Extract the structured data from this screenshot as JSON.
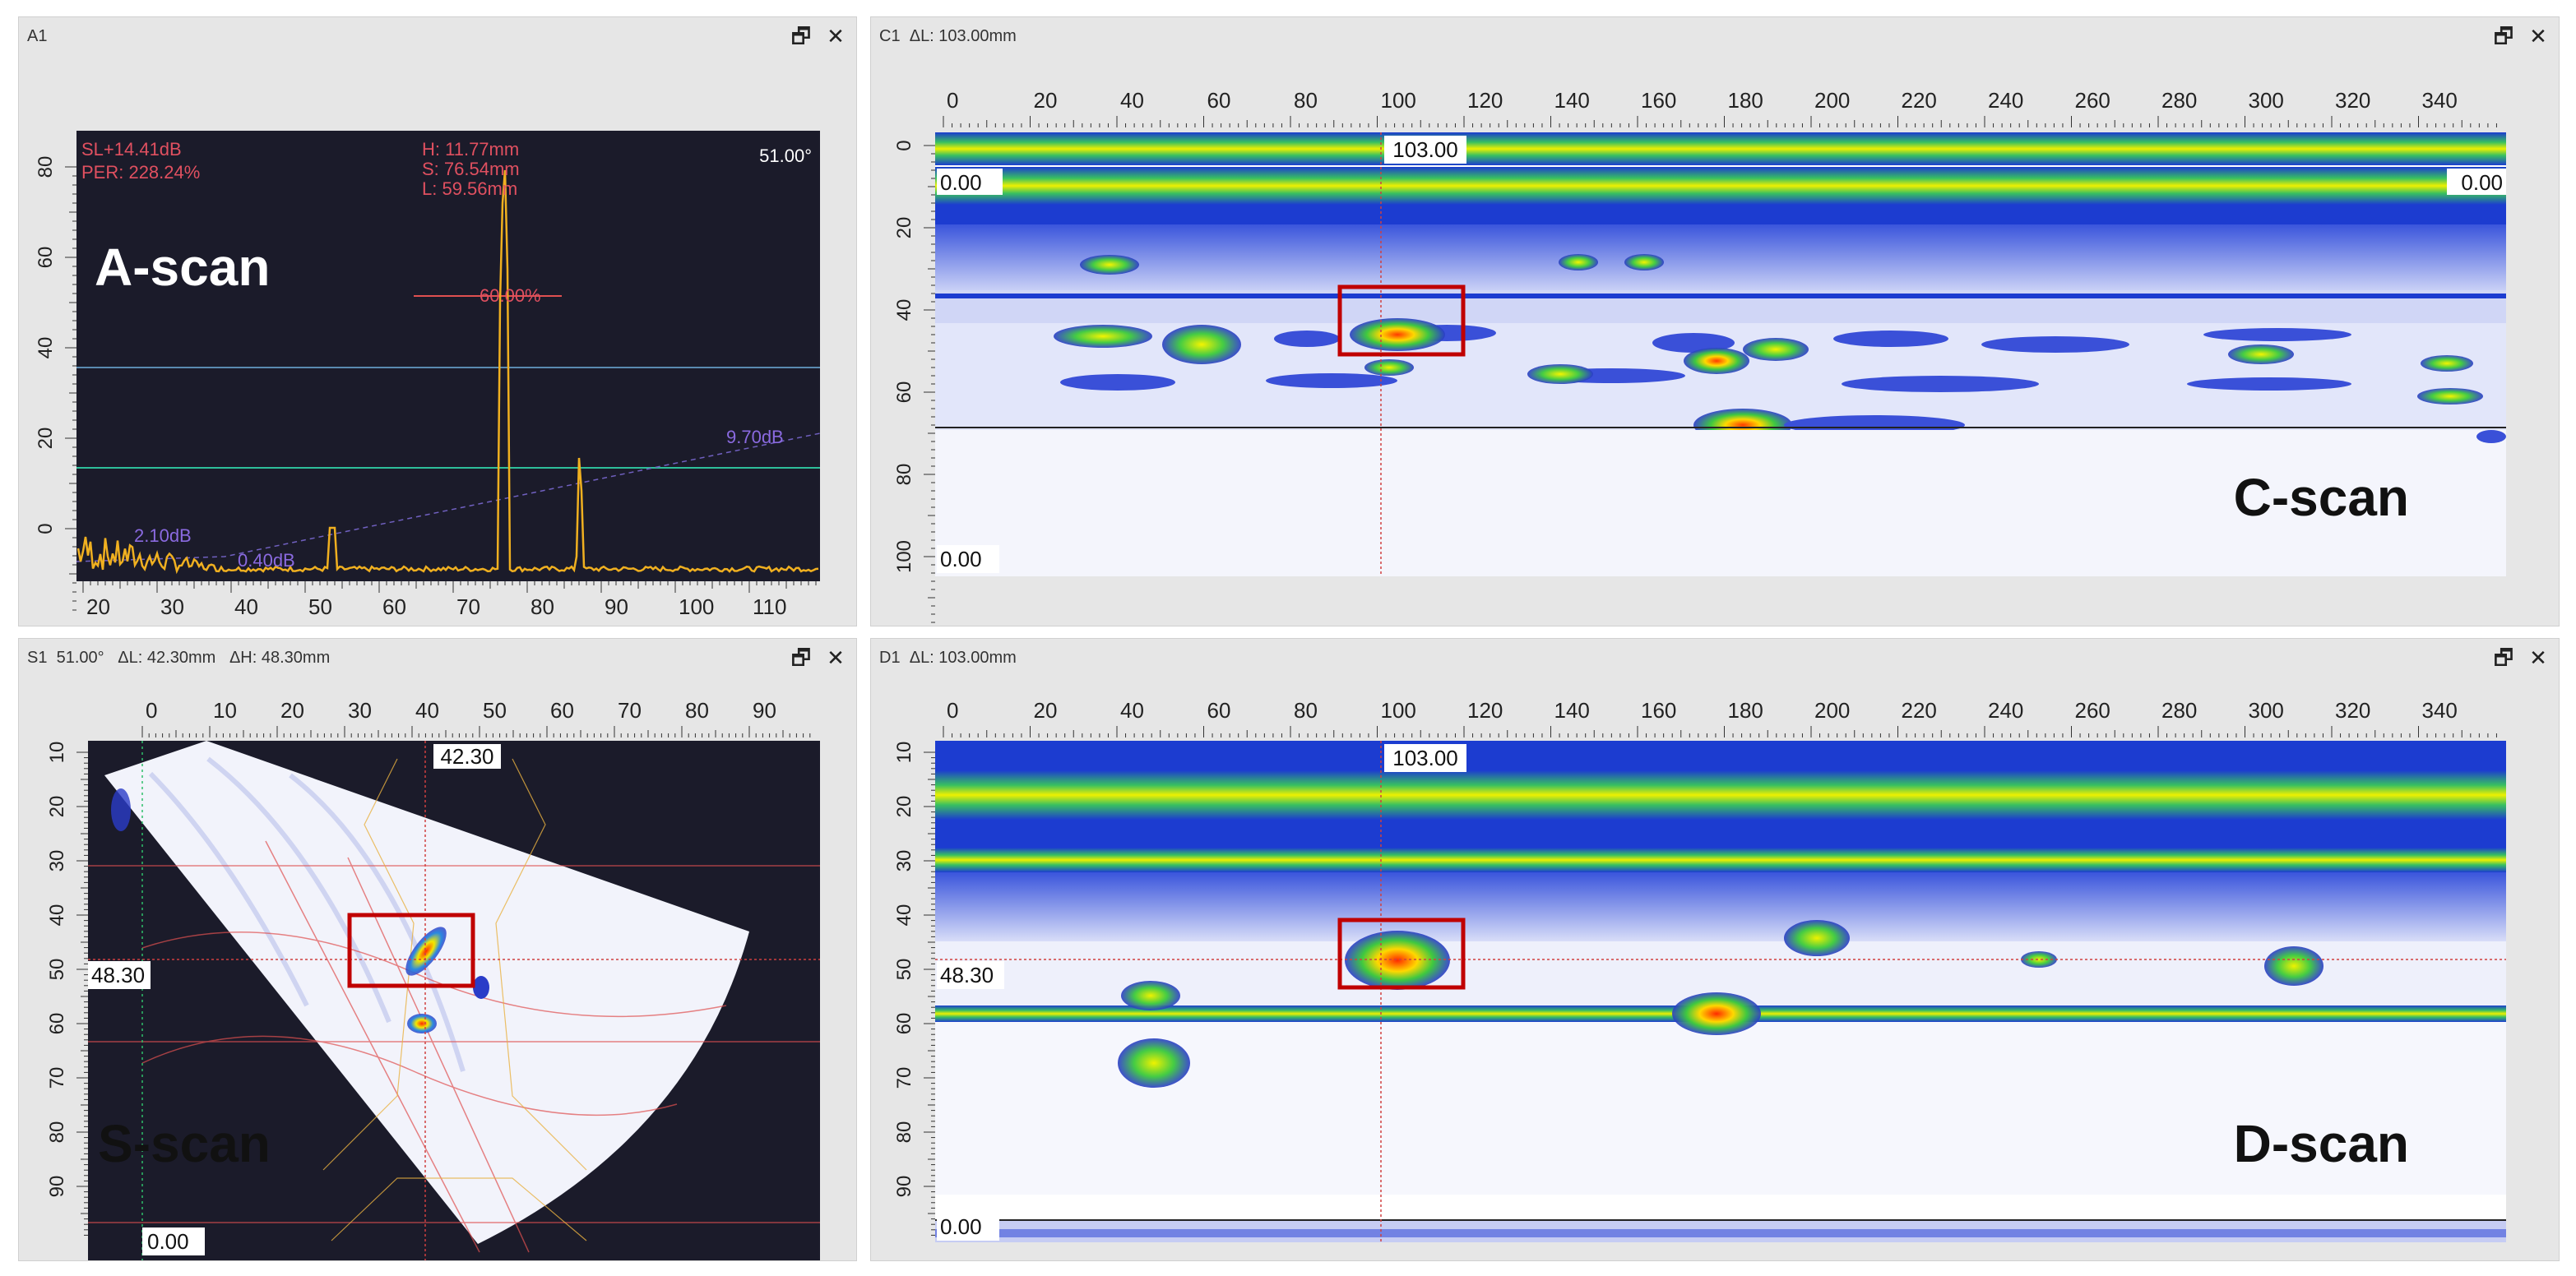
{
  "panels": {
    "a": {
      "title": "A1",
      "header_extra": "",
      "readouts": {
        "sl": "SL+14.41dB",
        "per": "PER: 228.24%",
        "h": "H: 11.77mm",
        "s": "S: 76.54mm",
        "l": "L: 59.56mm",
        "angle": "51.00°"
      },
      "gate_label": "60.00%",
      "tcg_labels": [
        "9.70dB",
        "2.10dB",
        "0.40dB"
      ],
      "overlay_label": "A-scan",
      "x_ticks": [
        "20",
        "30",
        "40",
        "50",
        "60",
        "70",
        "80",
        "90",
        "100",
        "110"
      ],
      "y_ticks": [
        "80",
        "60",
        "40",
        "20",
        "0"
      ]
    },
    "c": {
      "title": "C1",
      "header_extra": "ΔL: 103.00mm",
      "cursor_label": "103.00",
      "left_value": "0.00",
      "right_value": "0.00",
      "bottom_value": "0.00",
      "overlay_label": "C-scan",
      "x_ticks": [
        "0",
        "20",
        "40",
        "60",
        "80",
        "100",
        "120",
        "140",
        "160",
        "180",
        "200",
        "220",
        "240",
        "260",
        "280",
        "300",
        "320",
        "340"
      ],
      "y_ticks": [
        "0",
        "20",
        "40",
        "60",
        "80",
        "100"
      ]
    },
    "s": {
      "title": "S1",
      "header_extra": "51.00°   ΔL: 42.30mm   ΔH: 48.30mm",
      "cursor_x_label": "42.30",
      "cursor_y_label": "48.30",
      "bottom_value": "0.00",
      "overlay_label": "S-scan",
      "x_ticks": [
        "0",
        "10",
        "20",
        "30",
        "40",
        "50",
        "60",
        "70",
        "80",
        "90"
      ],
      "y_ticks": [
        "10",
        "20",
        "30",
        "40",
        "50",
        "60",
        "70",
        "80",
        "90"
      ]
    },
    "d": {
      "title": "D1",
      "header_extra": "ΔL: 103.00mm",
      "cursor_label": "103.00",
      "left_value": "48.30",
      "bottom_value": "0.00",
      "overlay_label": "D-scan",
      "x_ticks": [
        "0",
        "20",
        "40",
        "60",
        "80",
        "100",
        "120",
        "140",
        "160",
        "180",
        "200",
        "220",
        "240",
        "260",
        "280",
        "300",
        "320",
        "340"
      ],
      "y_ticks": [
        "10",
        "20",
        "30",
        "40",
        "50",
        "60",
        "70",
        "80",
        "90"
      ]
    }
  },
  "icons": {
    "restore": "restore-window-icon",
    "close": "close-icon"
  },
  "glyphs": {
    "restore": "🗗",
    "close": "✕"
  },
  "colors": {
    "plot_bg": "#1b1b2a",
    "signal": "#f0b020",
    "gate": "#e05050",
    "highlight_box": "#c00000",
    "cursor": "#d04040"
  }
}
